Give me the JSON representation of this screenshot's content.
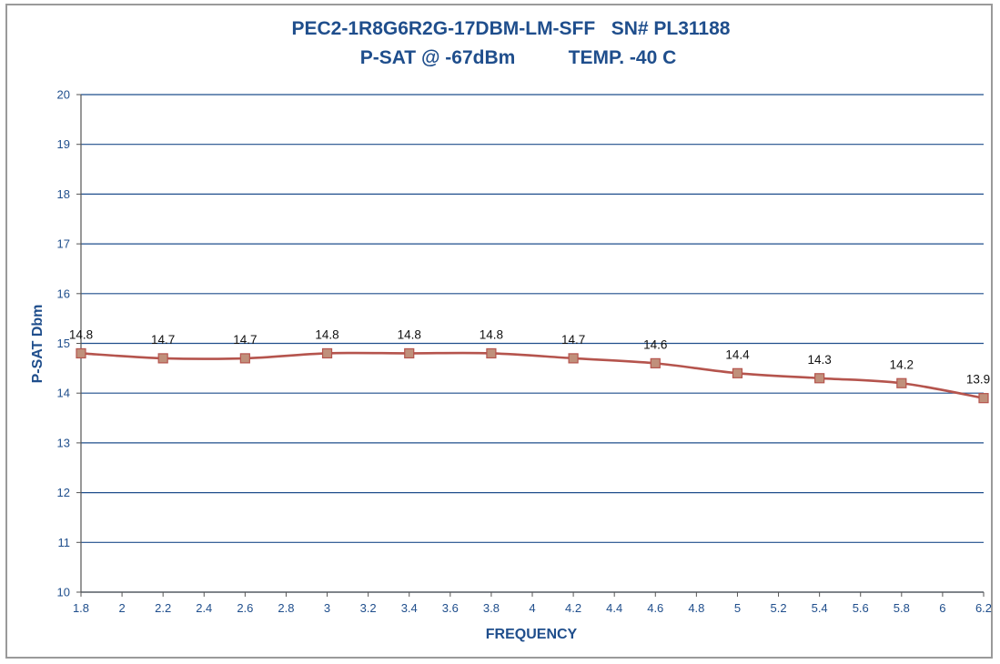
{
  "chart_data": {
    "type": "line",
    "title_line1": "PEC2-1R8G6R2G-17DBM-LM-SFF   SN# PL31188",
    "title_line2": "P-SAT @ -67dBm          TEMP. -40 C",
    "xlabel": "FREQUENCY",
    "ylabel": "P-SAT Dbm",
    "xlim": [
      1.8,
      6.2
    ],
    "ylim": [
      10,
      20
    ],
    "x_ticks": [
      "1.8",
      "2",
      "2.2",
      "2.4",
      "2.6",
      "2.8",
      "3",
      "3.2",
      "3.4",
      "3.6",
      "3.8",
      "4",
      "4.2",
      "4.4",
      "4.6",
      "4.8",
      "5",
      "5.2",
      "5.4",
      "5.6",
      "5.8",
      "6",
      "6.2"
    ],
    "y_ticks": [
      "10",
      "11",
      "12",
      "13",
      "14",
      "15",
      "16",
      "17",
      "18",
      "19",
      "20"
    ],
    "grid": "horizontal",
    "series": [
      {
        "x": [
          1.8,
          2.2,
          2.6,
          3.0,
          3.4,
          3.8,
          4.2,
          4.6,
          5.0,
          5.4,
          5.8,
          6.2
        ],
        "values": [
          14.8,
          14.7,
          14.7,
          14.8,
          14.8,
          14.8,
          14.7,
          14.6,
          14.4,
          14.3,
          14.2,
          13.9
        ],
        "labels": [
          "14.8",
          "14.7",
          "14.7",
          "14.8",
          "14.8",
          "14.8",
          "14.7",
          "14.6",
          "14.4",
          "14.3",
          "14.2",
          "13.9"
        ]
      }
    ],
    "colors": {
      "title": "#1f4e8c",
      "line": "#b5544d",
      "marker": "#c0907b",
      "grid": "#1f4e8c"
    }
  }
}
